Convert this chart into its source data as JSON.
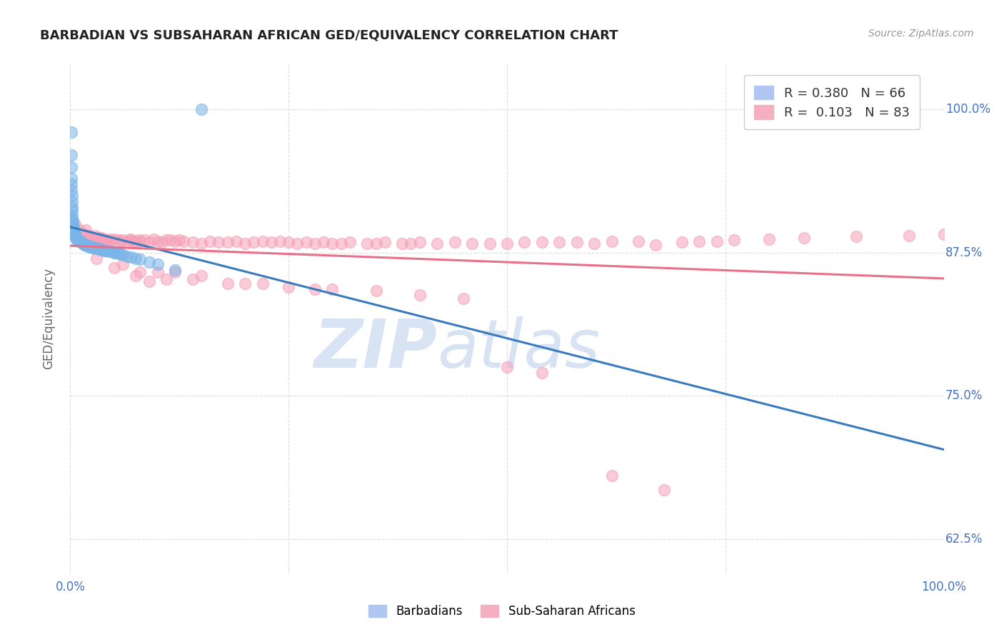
{
  "title": "BARBADIAN VS SUBSAHARAN AFRICAN GED/EQUIVALENCY CORRELATION CHART",
  "source_text": "Source: ZipAtlas.com",
  "ylabel": "GED/Equivalency",
  "xlim": [
    0.0,
    1.0
  ],
  "ylim": [
    0.595,
    1.04
  ],
  "yticks": [
    0.625,
    0.75,
    0.875,
    1.0
  ],
  "ytick_labels": [
    "62.5%",
    "75.0%",
    "87.5%",
    "100.0%"
  ],
  "background_color": "#ffffff",
  "grid_color": "#dddddd",
  "blue_scatter_color": "#7ab4e8",
  "pink_scatter_color": "#f5a0b8",
  "blue_line_color": "#3a7abf",
  "pink_line_color": "#e8708a",
  "watermark_color": "#dde8f5",
  "watermark_zip": "ZIP",
  "watermark_atlas": "atlas",
  "bottom_legend": [
    "Barbadians",
    "Sub-Saharan Africans"
  ],
  "bottom_legend_colors": [
    "#aec6f0",
    "#f4afc0"
  ],
  "barbadian_x": [
    0.001,
    0.001,
    0.001,
    0.001,
    0.001,
    0.001,
    0.002,
    0.002,
    0.002,
    0.002,
    0.002,
    0.002,
    0.003,
    0.003,
    0.003,
    0.004,
    0.004,
    0.004,
    0.005,
    0.005,
    0.006,
    0.006,
    0.007,
    0.007,
    0.008,
    0.009,
    0.01,
    0.011,
    0.012,
    0.013,
    0.014,
    0.015,
    0.016,
    0.017,
    0.018,
    0.019,
    0.02,
    0.021,
    0.022,
    0.024,
    0.025,
    0.026,
    0.027,
    0.028,
    0.03,
    0.032,
    0.034,
    0.036,
    0.038,
    0.04,
    0.042,
    0.045,
    0.048,
    0.05,
    0.052,
    0.055,
    0.058,
    0.06,
    0.065,
    0.07,
    0.075,
    0.08,
    0.09,
    0.1,
    0.12,
    0.15
  ],
  "barbadian_y": [
    0.98,
    0.96,
    0.95,
    0.94,
    0.935,
    0.93,
    0.925,
    0.92,
    0.915,
    0.912,
    0.908,
    0.905,
    0.902,
    0.9,
    0.898,
    0.896,
    0.894,
    0.892,
    0.892,
    0.89,
    0.89,
    0.888,
    0.888,
    0.887,
    0.886,
    0.886,
    0.885,
    0.885,
    0.884,
    0.884,
    0.883,
    0.883,
    0.882,
    0.882,
    0.882,
    0.881,
    0.881,
    0.881,
    0.88,
    0.88,
    0.88,
    0.879,
    0.879,
    0.879,
    0.879,
    0.878,
    0.878,
    0.878,
    0.877,
    0.877,
    0.877,
    0.876,
    0.876,
    0.875,
    0.875,
    0.874,
    0.874,
    0.873,
    0.872,
    0.871,
    0.87,
    0.869,
    0.867,
    0.865,
    0.86,
    1.0
  ],
  "subsaharan_x": [
    0.005,
    0.01,
    0.015,
    0.018,
    0.02,
    0.022,
    0.025,
    0.028,
    0.03,
    0.033,
    0.036,
    0.038,
    0.04,
    0.042,
    0.045,
    0.048,
    0.05,
    0.055,
    0.058,
    0.06,
    0.065,
    0.068,
    0.07,
    0.072,
    0.075,
    0.078,
    0.08,
    0.085,
    0.09,
    0.095,
    0.1,
    0.105,
    0.11,
    0.115,
    0.12,
    0.125,
    0.13,
    0.14,
    0.15,
    0.16,
    0.17,
    0.18,
    0.19,
    0.2,
    0.21,
    0.22,
    0.23,
    0.24,
    0.25,
    0.26,
    0.27,
    0.28,
    0.29,
    0.3,
    0.31,
    0.32,
    0.34,
    0.35,
    0.36,
    0.38,
    0.39,
    0.4,
    0.42,
    0.44,
    0.46,
    0.48,
    0.5,
    0.52,
    0.54,
    0.56,
    0.58,
    0.6,
    0.62,
    0.65,
    0.67,
    0.7,
    0.72,
    0.74,
    0.76,
    0.8,
    0.84,
    0.9,
    0.96,
    1.0
  ],
  "subsaharan_y": [
    0.9,
    0.895,
    0.892,
    0.895,
    0.888,
    0.89,
    0.888,
    0.89,
    0.887,
    0.888,
    0.888,
    0.886,
    0.887,
    0.885,
    0.887,
    0.886,
    0.887,
    0.886,
    0.885,
    0.886,
    0.885,
    0.887,
    0.886,
    0.885,
    0.884,
    0.886,
    0.885,
    0.886,
    0.884,
    0.887,
    0.885,
    0.884,
    0.886,
    0.886,
    0.885,
    0.886,
    0.885,
    0.884,
    0.883,
    0.885,
    0.884,
    0.884,
    0.885,
    0.883,
    0.884,
    0.885,
    0.884,
    0.885,
    0.884,
    0.883,
    0.884,
    0.883,
    0.884,
    0.883,
    0.883,
    0.884,
    0.883,
    0.883,
    0.884,
    0.883,
    0.883,
    0.884,
    0.883,
    0.884,
    0.883,
    0.883,
    0.883,
    0.884,
    0.884,
    0.884,
    0.884,
    0.883,
    0.885,
    0.885,
    0.882,
    0.884,
    0.885,
    0.885,
    0.886,
    0.887,
    0.888,
    0.889,
    0.89,
    0.891
  ],
  "subsaharan_outlier_x": [
    0.03,
    0.05,
    0.06,
    0.075,
    0.08,
    0.09,
    0.1,
    0.11,
    0.12,
    0.14,
    0.15,
    0.18,
    0.2,
    0.22,
    0.25,
    0.28,
    0.3,
    0.35,
    0.4,
    0.45,
    0.5,
    0.54,
    0.62,
    0.68
  ],
  "subsaharan_outlier_y": [
    0.87,
    0.862,
    0.865,
    0.855,
    0.858,
    0.85,
    0.858,
    0.852,
    0.858,
    0.852,
    0.855,
    0.848,
    0.848,
    0.848,
    0.845,
    0.843,
    0.843,
    0.842,
    0.838,
    0.835,
    0.775,
    0.77,
    0.68,
    0.668
  ]
}
